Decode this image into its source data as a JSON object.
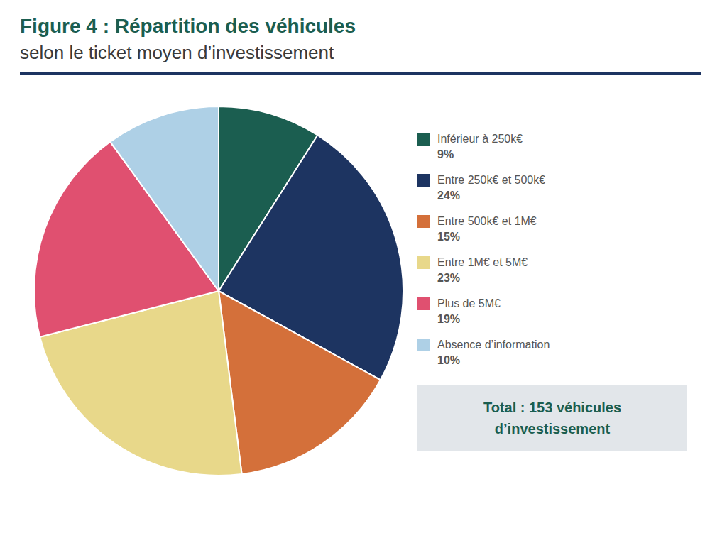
{
  "chart_data": {
    "type": "pie",
    "title": "Figure 4 : Répartition des véhicules",
    "subtitle": "selon le ticket moyen d’investissement",
    "categories": [
      "Inférieur à 250k€",
      "Entre 250k€ et 500k€",
      "Entre 500k€ et 1M€",
      "Entre 1M€ et 5M€",
      "Plus de 5M€",
      "Absence d’information"
    ],
    "values": [
      9,
      24,
      15,
      23,
      19,
      10
    ],
    "value_labels": [
      "9%",
      "24%",
      "15%",
      "23%",
      "19%",
      "10%"
    ],
    "colors": [
      "#1b5e50",
      "#1d3461",
      "#d4703a",
      "#e8d88a",
      "#e05070",
      "#aed0e6"
    ],
    "legend": "right",
    "annotations": [
      "Total : 153 véhicules",
      "d’investissement"
    ]
  }
}
